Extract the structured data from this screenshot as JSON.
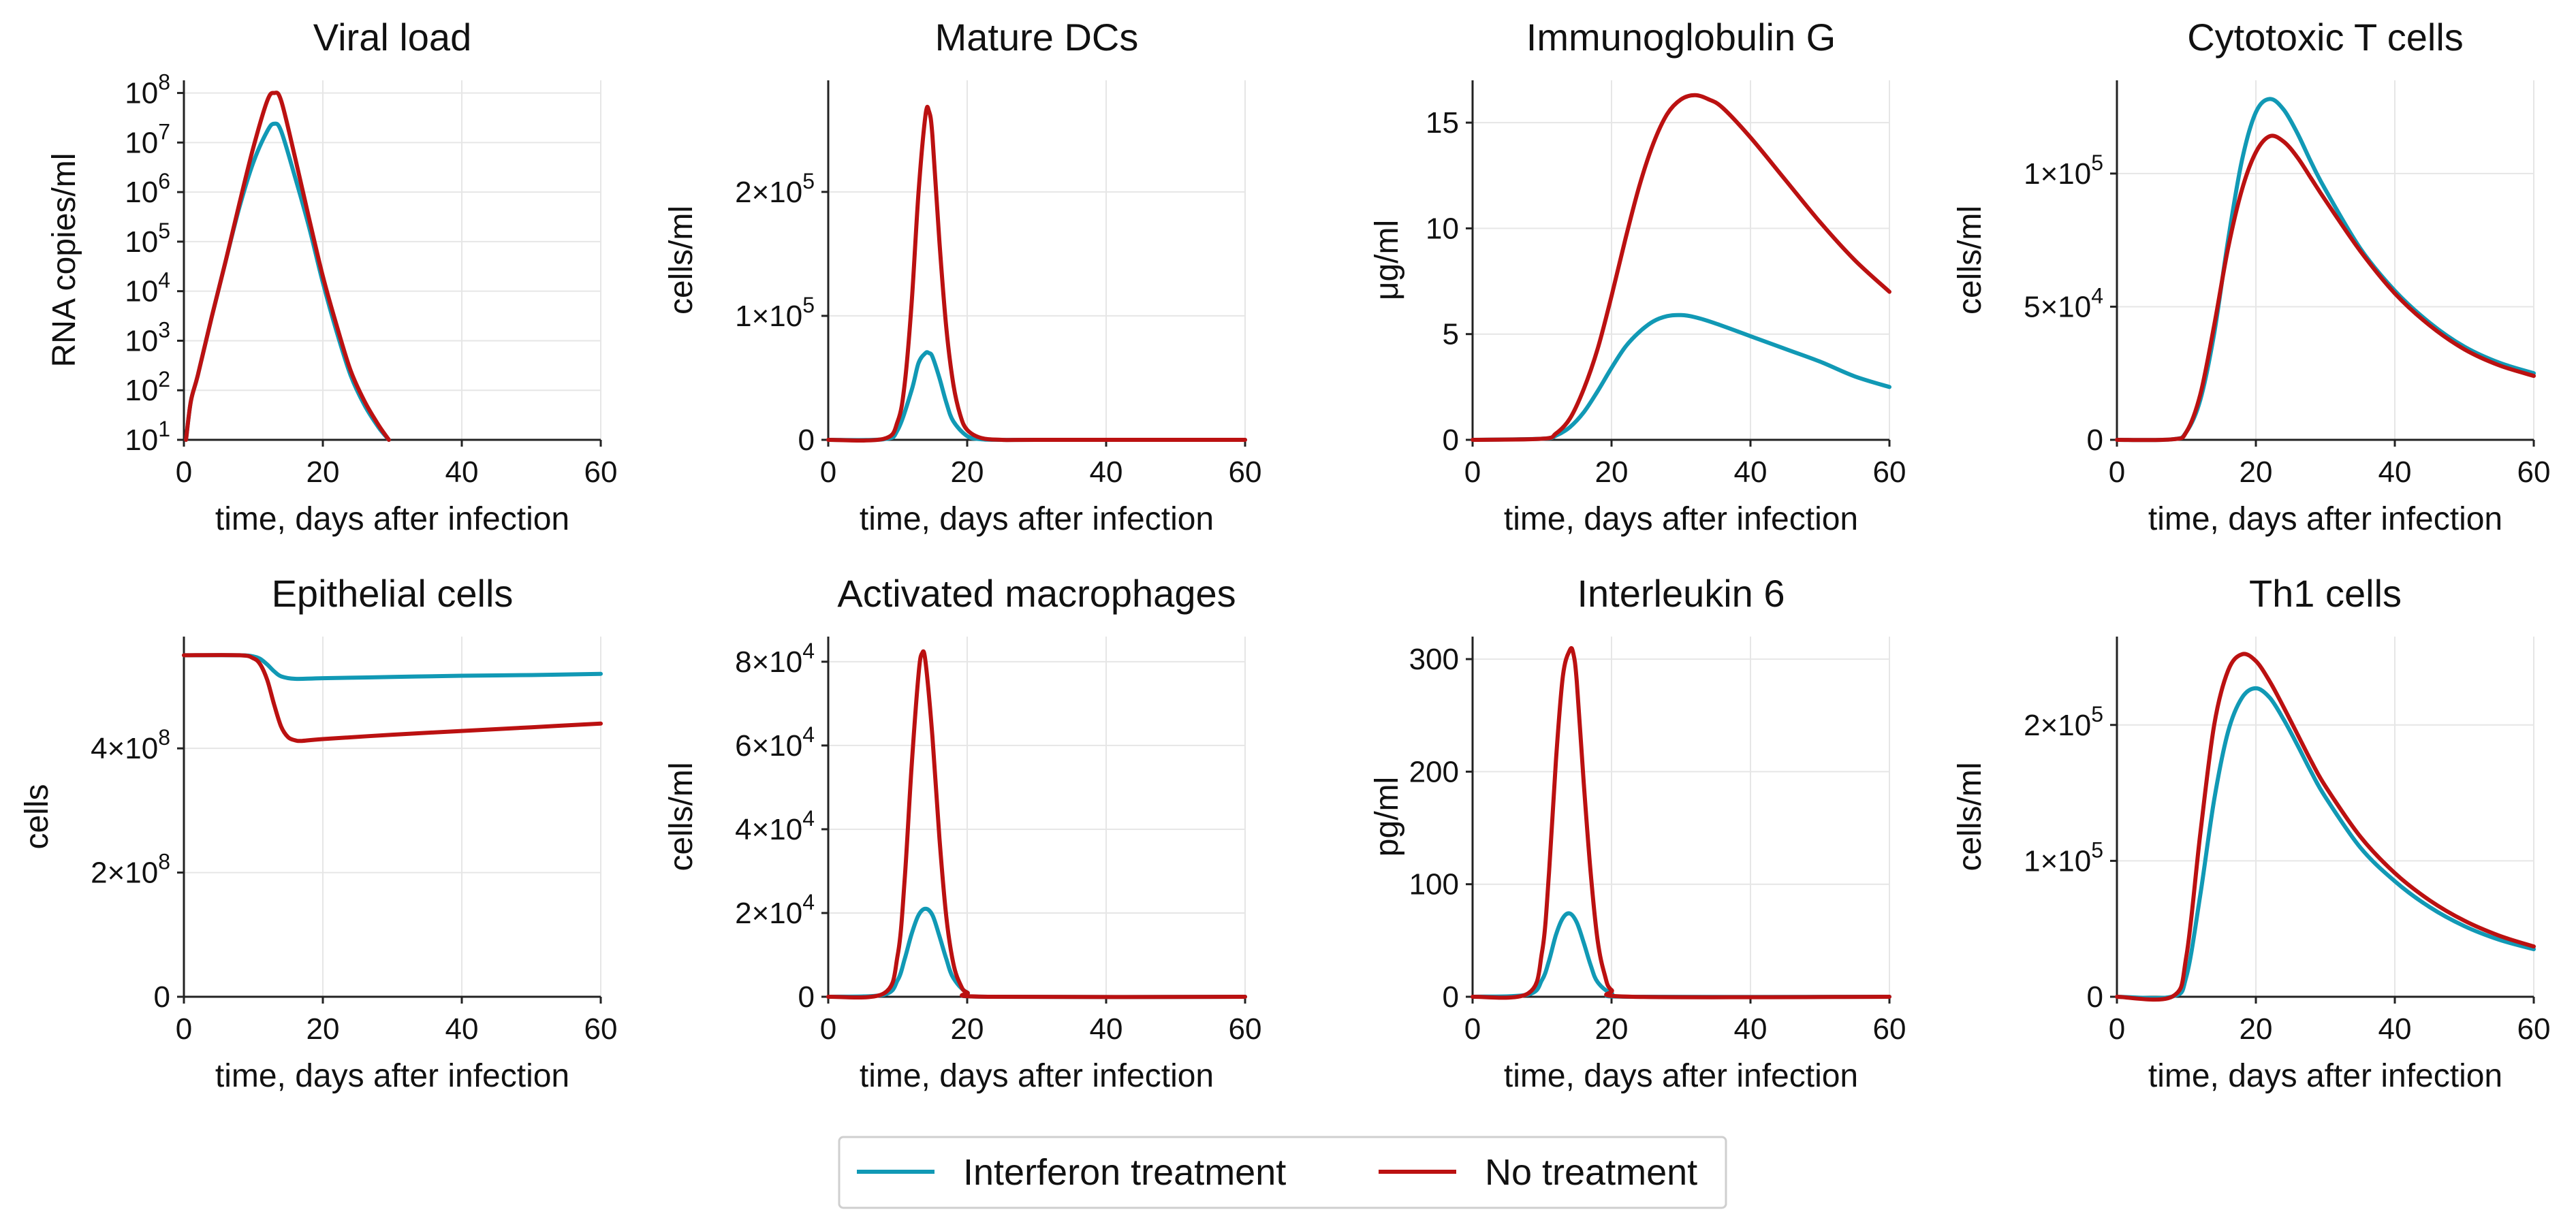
{
  "colors": {
    "treated": "#1199b5",
    "untreated": "#bb1111",
    "grid": "#e6e6e6",
    "axis": "#222222"
  },
  "legend": {
    "items": [
      {
        "label": "Interferon treatment",
        "color": "#1199b5"
      },
      {
        "label": "No treatment",
        "color": "#bb1111"
      }
    ]
  },
  "chart_data": [
    {
      "id": "viral-load",
      "type": "line",
      "title": "Viral load",
      "xlabel": "time, days after infection",
      "ylabel": "RNA copies/ml",
      "xlim": [
        0,
        60
      ],
      "xticks": [
        0,
        20,
        40,
        60
      ],
      "yscale": "log",
      "ylim": [
        10,
        180000000
      ],
      "yticks": [
        {
          "v": 10,
          "base": "10",
          "exp": "1"
        },
        {
          "v": 100,
          "base": "10",
          "exp": "2"
        },
        {
          "v": 1000,
          "base": "10",
          "exp": "3"
        },
        {
          "v": 10000,
          "base": "10",
          "exp": "4"
        },
        {
          "v": 100000,
          "base": "10",
          "exp": "5"
        },
        {
          "v": 1000000,
          "base": "10",
          "exp": "6"
        },
        {
          "v": 10000000,
          "base": "10",
          "exp": "7"
        },
        {
          "v": 100000000,
          "base": "10",
          "exp": "8"
        }
      ],
      "series": [
        {
          "name": "Interferon treatment",
          "x": [
            0.3,
            1,
            2,
            4,
            6,
            8,
            10,
            12,
            13,
            14,
            16,
            18,
            20,
            22,
            24,
            26,
            28,
            29.5
          ],
          "y": [
            10,
            60,
            200,
            3000,
            40000,
            500000,
            4000000,
            17000000,
            24000000,
            17000000,
            2000000,
            200000,
            15000,
            1500,
            200,
            50,
            18,
            10
          ]
        },
        {
          "name": "No treatment",
          "x": [
            0.3,
            1,
            2,
            4,
            6,
            8,
            10,
            12,
            13,
            14,
            16,
            18,
            20,
            22,
            24,
            26,
            28,
            29.5
          ],
          "y": [
            10,
            60,
            200,
            3000,
            40000,
            600000,
            8000000,
            70000000,
            100000000,
            70000000,
            5000000,
            300000,
            20000,
            2000,
            250,
            60,
            20,
            10
          ]
        }
      ]
    },
    {
      "id": "mature-dcs",
      "type": "line",
      "title": "Mature DCs",
      "xlabel": "time, days after infection",
      "ylabel": "cells/ml",
      "xlim": [
        0,
        60
      ],
      "xticks": [
        0,
        20,
        40,
        60
      ],
      "yscale": "linear",
      "ylim": [
        0,
        290000
      ],
      "yticks": [
        {
          "v": 0,
          "text": "0"
        },
        {
          "v": 100000,
          "coef": "1",
          "exp": "5"
        },
        {
          "v": 200000,
          "coef": "2",
          "exp": "5"
        }
      ],
      "series": [
        {
          "name": "Interferon treatment",
          "x": [
            0,
            8,
            10,
            12,
            13,
            14,
            14.5,
            15,
            16,
            17,
            18,
            20,
            22,
            25,
            30,
            60
          ],
          "y": [
            0,
            500,
            8000,
            40000,
            62000,
            70000,
            70000,
            67000,
            50000,
            30000,
            15000,
            3000,
            500,
            0,
            0,
            0
          ]
        },
        {
          "name": "No treatment",
          "x": [
            0,
            8,
            10,
            11,
            12,
            13,
            14,
            14.5,
            15,
            16,
            17,
            18,
            19,
            20,
            22,
            25,
            30,
            60
          ],
          "y": [
            0,
            800,
            15000,
            45000,
            110000,
            200000,
            262000,
            265000,
            245000,
            160000,
            90000,
            45000,
            20000,
            8000,
            1500,
            0,
            0,
            0
          ]
        }
      ]
    },
    {
      "id": "immunoglobulin-g",
      "type": "line",
      "title": "Immunoglobulin G",
      "xlabel": "time, days after infection",
      "ylabel": "μg/ml",
      "xlim": [
        0,
        60
      ],
      "xticks": [
        0,
        20,
        40,
        60
      ],
      "yscale": "linear",
      "ylim": [
        0,
        17
      ],
      "yticks": [
        {
          "v": 0,
          "text": "0"
        },
        {
          "v": 5,
          "text": "5"
        },
        {
          "v": 10,
          "text": "10"
        },
        {
          "v": 15,
          "text": "15"
        }
      ],
      "series": [
        {
          "name": "Interferon treatment",
          "x": [
            0,
            10,
            12,
            14,
            16,
            18,
            20,
            22,
            24,
            26,
            28,
            30,
            32,
            35,
            40,
            45,
            50,
            55,
            60
          ],
          "y": [
            0,
            0.05,
            0.2,
            0.6,
            1.3,
            2.3,
            3.4,
            4.4,
            5.1,
            5.6,
            5.85,
            5.9,
            5.8,
            5.5,
            4.9,
            4.3,
            3.7,
            3.0,
            2.5
          ]
        },
        {
          "name": "No treatment",
          "x": [
            0,
            10,
            12,
            14,
            16,
            18,
            20,
            22,
            24,
            26,
            28,
            30,
            32,
            34,
            36,
            40,
            45,
            50,
            55,
            60
          ],
          "y": [
            0,
            0.05,
            0.3,
            1.0,
            2.4,
            4.3,
            6.8,
            9.5,
            12.0,
            14.0,
            15.4,
            16.1,
            16.3,
            16.1,
            15.7,
            14.3,
            12.3,
            10.3,
            8.5,
            7.0
          ]
        }
      ]
    },
    {
      "id": "cytotoxic-t-cells",
      "type": "line",
      "title": "Cytotoxic T cells",
      "xlabel": "time, days after infection",
      "ylabel": "cells/ml",
      "xlim": [
        0,
        60
      ],
      "xticks": [
        0,
        20,
        40,
        60
      ],
      "yscale": "linear",
      "ylim": [
        0,
        135000
      ],
      "yticks": [
        {
          "v": 0,
          "text": "0"
        },
        {
          "v": 50000,
          "coef": "5",
          "exp": "4"
        },
        {
          "v": 100000,
          "coef": "1",
          "exp": "5"
        }
      ],
      "series": [
        {
          "name": "Interferon treatment",
          "x": [
            0,
            8,
            10,
            12,
            14,
            16,
            18,
            20,
            22,
            24,
            26,
            28,
            30,
            35,
            40,
            45,
            50,
            55,
            60
          ],
          "y": [
            0,
            200,
            3000,
            15000,
            40000,
            75000,
            105000,
            123000,
            128000,
            124000,
            115000,
            104000,
            94000,
            72000,
            56000,
            44000,
            35000,
            29000,
            25000
          ]
        },
        {
          "name": "No treatment",
          "x": [
            0,
            8,
            10,
            12,
            14,
            16,
            18,
            20,
            22,
            24,
            26,
            28,
            30,
            35,
            40,
            45,
            50,
            55,
            60
          ],
          "y": [
            0,
            200,
            3000,
            17000,
            43000,
            72000,
            94000,
            108000,
            114000,
            112000,
            106000,
            98000,
            90000,
            71000,
            55000,
            43000,
            34000,
            28000,
            24000
          ]
        }
      ]
    },
    {
      "id": "epithelial-cells",
      "type": "line",
      "title": "Epithelial cells",
      "xlabel": "time, days after infection",
      "ylabel": "cells",
      "xlim": [
        0,
        60
      ],
      "xticks": [
        0,
        20,
        40,
        60
      ],
      "yscale": "linear",
      "ylim": [
        0,
        580000000
      ],
      "yticks": [
        {
          "v": 0,
          "text": "0"
        },
        {
          "v": 200000000,
          "coef": "2",
          "exp": "8"
        },
        {
          "v": 400000000,
          "coef": "4",
          "exp": "8"
        }
      ],
      "series": [
        {
          "name": "Interferon treatment",
          "x": [
            0,
            8,
            10,
            11,
            12,
            13,
            14,
            16,
            20,
            30,
            40,
            50,
            60
          ],
          "y": [
            550000000,
            550000000,
            548000000,
            544000000,
            535000000,
            524000000,
            516000000,
            512000000,
            513000000,
            515000000,
            517000000,
            518000000,
            520000000
          ]
        },
        {
          "name": "No treatment",
          "x": [
            0,
            8,
            10,
            11,
            12,
            13,
            14,
            15,
            16,
            17,
            20,
            30,
            40,
            50,
            60
          ],
          "y": [
            550000000,
            550000000,
            545000000,
            535000000,
            510000000,
            470000000,
            435000000,
            418000000,
            413000000,
            412000000,
            415000000,
            422000000,
            428000000,
            434000000,
            440000000
          ]
        }
      ]
    },
    {
      "id": "activated-macrophages",
      "type": "line",
      "title": "Activated macrophages",
      "xlabel": "time, days after infection",
      "ylabel": "cells/ml",
      "xlim": [
        0,
        60
      ],
      "xticks": [
        0,
        20,
        40,
        60
      ],
      "yscale": "linear",
      "ylim": [
        0,
        86000
      ],
      "yticks": [
        {
          "v": 0,
          "text": "0"
        },
        {
          "v": 20000,
          "coef": "2",
          "exp": "4"
        },
        {
          "v": 40000,
          "coef": "4",
          "exp": "4"
        },
        {
          "v": 60000,
          "coef": "6",
          "exp": "4"
        },
        {
          "v": 80000,
          "coef": "8",
          "exp": "4"
        }
      ],
      "series": [
        {
          "name": "Interferon treatment",
          "x": [
            0,
            8,
            10,
            11,
            12,
            13,
            14,
            15,
            16,
            17,
            18,
            20,
            23,
            60
          ],
          "y": [
            0,
            500,
            4000,
            9000,
            15000,
            19500,
            21000,
            19500,
            14500,
            9000,
            4500,
            1000,
            0,
            0
          ]
        },
        {
          "name": "No treatment",
          "x": [
            0,
            8,
            10,
            11,
            12,
            13,
            13.5,
            14,
            15,
            16,
            17,
            18,
            19,
            20,
            23,
            60
          ],
          "y": [
            0,
            800,
            10000,
            28000,
            55000,
            77000,
            82000,
            80000,
            62000,
            38000,
            19000,
            8000,
            3000,
            1000,
            0,
            0
          ]
        }
      ]
    },
    {
      "id": "interleukin-6",
      "type": "line",
      "title": "Interleukin 6",
      "xlabel": "time, days after infection",
      "ylabel": "pg/ml",
      "xlim": [
        0,
        60
      ],
      "xticks": [
        0,
        20,
        40,
        60
      ],
      "yscale": "linear",
      "ylim": [
        0,
        320
      ],
      "yticks": [
        {
          "v": 0,
          "text": "0"
        },
        {
          "v": 100,
          "text": "100"
        },
        {
          "v": 200,
          "text": "200"
        },
        {
          "v": 300,
          "text": "300"
        }
      ],
      "series": [
        {
          "name": "Interferon treatment",
          "x": [
            0,
            8,
            10,
            11,
            12,
            13,
            14,
            15,
            16,
            17,
            18,
            20,
            23,
            60
          ],
          "y": [
            0,
            2,
            15,
            32,
            55,
            70,
            74,
            66,
            48,
            28,
            13,
            3,
            0,
            0
          ]
        },
        {
          "name": "No treatment",
          "x": [
            0,
            8,
            10,
            11,
            12,
            13,
            14,
            14.5,
            15,
            16,
            17,
            18,
            19,
            20,
            23,
            60
          ],
          "y": [
            0,
            3,
            40,
            110,
            210,
            285,
            308,
            305,
            280,
            190,
            110,
            50,
            20,
            6,
            0,
            0
          ]
        }
      ]
    },
    {
      "id": "th1-cells",
      "type": "line",
      "title": "Th1 cells",
      "xlabel": "time, days after infection",
      "ylabel": "cells/ml",
      "xlim": [
        0,
        60
      ],
      "xticks": [
        0,
        20,
        40,
        60
      ],
      "yscale": "linear",
      "ylim": [
        0,
        265000
      ],
      "yticks": [
        {
          "v": 0,
          "text": "0"
        },
        {
          "v": 100000,
          "coef": "1",
          "exp": "5"
        },
        {
          "v": 200000,
          "coef": "2",
          "exp": "5"
        }
      ],
      "series": [
        {
          "name": "Interferon treatment",
          "x": [
            0,
            8,
            10,
            12,
            14,
            16,
            18,
            20,
            22,
            24,
            26,
            28,
            30,
            35,
            40,
            45,
            50,
            55,
            60
          ],
          "y": [
            0,
            200,
            15000,
            75000,
            145000,
            195000,
            220000,
            227000,
            220000,
            204000,
            185000,
            165000,
            147000,
            110000,
            85000,
            66000,
            52000,
            42000,
            35000
          ]
        },
        {
          "name": "No treatment",
          "x": [
            0,
            8,
            10,
            12,
            14,
            16,
            18,
            20,
            22,
            24,
            26,
            28,
            30,
            35,
            40,
            45,
            50,
            55,
            60
          ],
          "y": [
            0,
            200,
            30000,
            120000,
            200000,
            240000,
            252000,
            247000,
            232000,
            213000,
            193000,
            173000,
            155000,
            118000,
            91000,
            71000,
            56000,
            45000,
            37000
          ]
        }
      ]
    }
  ]
}
